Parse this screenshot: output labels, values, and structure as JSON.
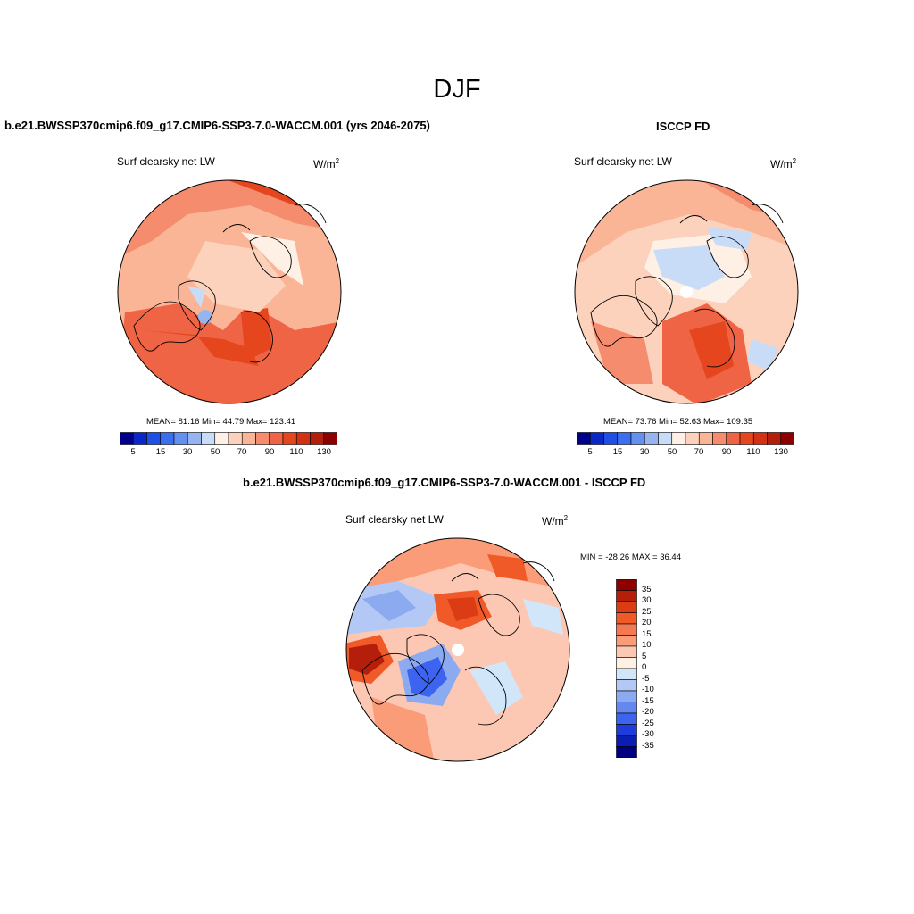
{
  "figure": {
    "season": "DJF"
  },
  "panels": [
    {
      "id": "model",
      "title": "b.e21.BWSSP370cmip6.f09_g17.CMIP6-SSP3-7.0-WACCM.001 (yrs 2046-2075)",
      "variable": "Surf clearsky net LW",
      "units": "W/m",
      "units_exp": "2",
      "stats": "MEAN=  81.16  Min=  44.79  Max= 123.41",
      "mean": 81.16,
      "min": 44.79,
      "max": 123.41
    },
    {
      "id": "obs",
      "title": "ISCCP FD",
      "variable": "Surf clearsky net LW",
      "units": "W/m",
      "units_exp": "2",
      "stats": "MEAN=  73.76  Min=  52.63  Max= 109.35",
      "mean": 73.76,
      "min": 52.63,
      "max": 109.35
    },
    {
      "id": "diff",
      "title": "b.e21.BWSSP370cmip6.f09_g17.CMIP6-SSP3-7.0-WACCM.001 - ISCCP FD",
      "variable": "Surf clearsky net LW",
      "units": "W/m",
      "units_exp": "2",
      "stats": "MIN = -28.26 MAX =  36.44",
      "min": -28.26,
      "max": 36.44
    }
  ],
  "abs_colorbar": {
    "colors": [
      "#00008b",
      "#0a28c8",
      "#1e50e6",
      "#3c6ef0",
      "#6490f0",
      "#96b4f0",
      "#c8dcf8",
      "#fff0e6",
      "#fcd2bc",
      "#fab496",
      "#f58c6e",
      "#f06446",
      "#e6461e",
      "#d23214",
      "#b41e0a",
      "#8c0000"
    ],
    "tick_labels": [
      "5",
      "15",
      "30",
      "50",
      "70",
      "90",
      "110",
      "130"
    ]
  },
  "diff_colorbar": {
    "colors_top_to_bottom": [
      "#8c0000",
      "#b41e0a",
      "#dc3c14",
      "#f05a28",
      "#f57850",
      "#fa9c78",
      "#fcc8b4",
      "#fff0e6",
      "#d2e6fa",
      "#b4c8f5",
      "#8caaf0",
      "#6488f0",
      "#3c64f0",
      "#1e3cdc",
      "#0a1eb4",
      "#000080"
    ],
    "labels_top_to_bottom": [
      "35",
      "30",
      "25",
      "20",
      "15",
      "10",
      "5",
      "0",
      "-5",
      "-10",
      "-15",
      "-20",
      "-25",
      "-30",
      "-35"
    ]
  }
}
